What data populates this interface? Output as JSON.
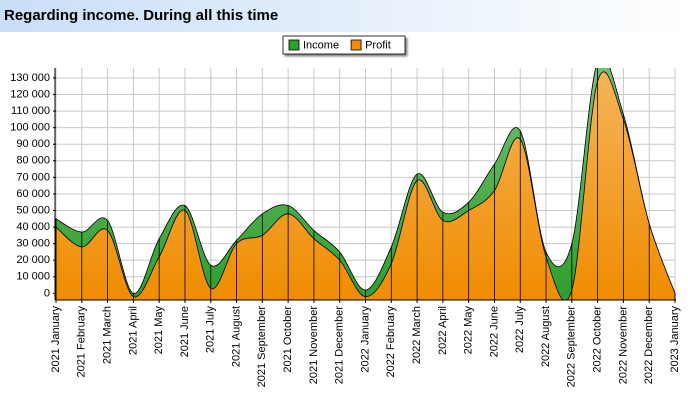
{
  "chart_data": {
    "type": "area",
    "title": "Regarding income. During all this time",
    "categories": [
      "2021 January",
      "2021 February",
      "2021 March",
      "2021 April",
      "2021 May",
      "2021 June",
      "2021 July",
      "2021 August",
      "2021 September",
      "2021 October",
      "2021 November",
      "2021 December",
      "2022 January",
      "2022 February",
      "2022 March",
      "2022 April",
      "2022 May",
      "2022 June",
      "2022 July",
      "2022 August",
      "2022 September",
      "2022 October",
      "2022 November",
      "2022 December",
      "2023 January"
    ],
    "series": [
      {
        "name": "Income",
        "color": "#2e9e2e",
        "values": [
          45000,
          37000,
          44000,
          0,
          33000,
          53000,
          17000,
          32000,
          48000,
          53000,
          38000,
          25000,
          2000,
          28000,
          72000,
          49000,
          55000,
          78000,
          98000,
          25000,
          30000,
          140000,
          108000,
          42000,
          0
        ]
      },
      {
        "name": "Profit",
        "color": "#f08c00",
        "values": [
          40000,
          28000,
          38000,
          -2000,
          22000,
          50000,
          3000,
          30000,
          35000,
          48000,
          33000,
          20000,
          -2000,
          18000,
          68000,
          44000,
          50000,
          62000,
          93000,
          22000,
          2000,
          128000,
          105000,
          42000,
          0
        ]
      }
    ],
    "ylim": [
      -4000,
      136000
    ],
    "yticks": [
      0,
      {
        "value": 10000,
        "label": "10 000"
      },
      {
        "value": 20000,
        "label": "20 000"
      },
      {
        "value": 30000,
        "label": "30 000"
      },
      {
        "value": 40000,
        "label": "40 000"
      },
      {
        "value": 50000,
        "label": "50 000"
      },
      {
        "value": 60000,
        "label": "60 000"
      },
      {
        "value": 70000,
        "label": "70 000"
      },
      {
        "value": 80000,
        "label": "80 000"
      },
      {
        "value": 90000,
        "label": "90 000"
      },
      {
        "value": 100000,
        "label": "100 000"
      },
      {
        "value": 110000,
        "label": "110 000"
      },
      {
        "value": 120000,
        "label": "120 000"
      },
      {
        "value": 130000,
        "label": "130 000"
      }
    ],
    "grid": true,
    "legend": "top"
  }
}
